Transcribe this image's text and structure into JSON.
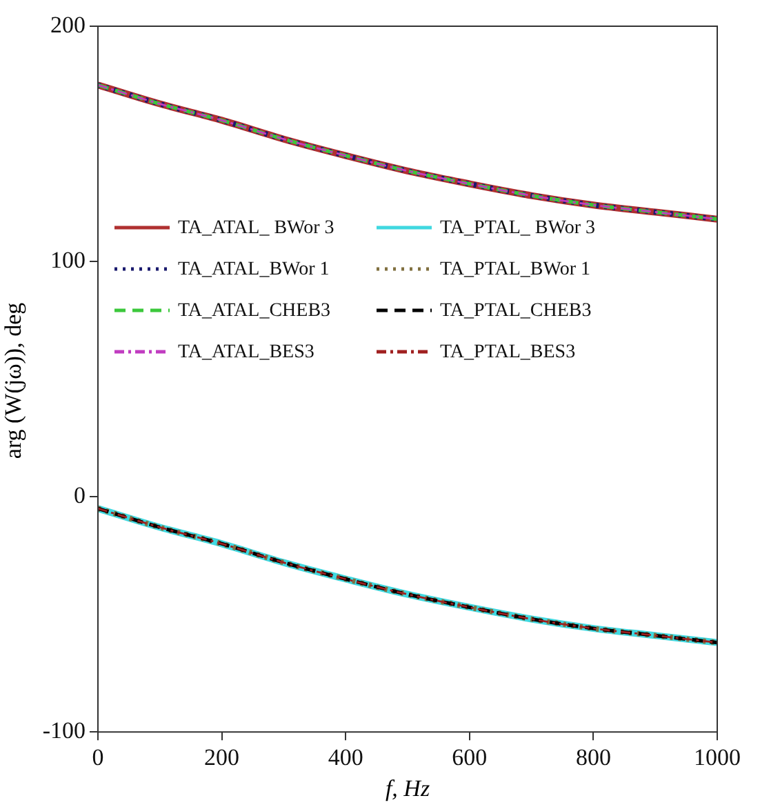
{
  "chart_data": {
    "type": "line",
    "xlabel": "f, Hz",
    "ylabel": "arg (W(jω)), deg",
    "x": [
      0,
      100,
      200,
      300,
      400,
      500,
      600,
      700,
      800,
      900,
      1000
    ],
    "xlim": [
      0,
      1000
    ],
    "xticks": [
      0,
      200,
      400,
      600,
      800,
      1000
    ],
    "ylim": [
      -100,
      200
    ],
    "yticks": [
      -100,
      0,
      100,
      200
    ],
    "grid": false,
    "legend": "left",
    "marker": "none",
    "series": [
      {
        "name": "TA_ATAL_ BWor 3",
        "color": "#b03030",
        "line_style": "solid",
        "values": [
          175,
          167,
          160,
          152,
          145,
          138.5,
          133,
          128,
          124,
          121,
          118
        ]
      },
      {
        "name": "TA_ATAL_BWor 1",
        "color": "#1a1a6e",
        "line_style": "dotted",
        "values": [
          175,
          167,
          160,
          152,
          145,
          138.5,
          133,
          128,
          124,
          121,
          118
        ]
      },
      {
        "name": "TA_ATAL_CHEB3",
        "color": "#3cc83c",
        "line_style": "dashed",
        "values": [
          175,
          167,
          160,
          152,
          145,
          138.5,
          133,
          128,
          124,
          121,
          118
        ]
      },
      {
        "name": "TA_ATAL_BES3",
        "color": "#c03cc0",
        "line_style": "dashdot",
        "values": [
          175,
          167,
          160,
          152,
          145,
          138.5,
          133,
          128,
          124,
          121,
          118
        ]
      },
      {
        "name": "TA_PTAL_ BWor 3",
        "color": "#40d8e0",
        "line_style": "solid",
        "values": [
          -5,
          -13,
          -20,
          -28,
          -35,
          -41.5,
          -47,
          -52,
          -56,
          -59,
          -62
        ]
      },
      {
        "name": "TA_PTAL_BWor 1",
        "color": "#807040",
        "line_style": "dotted",
        "values": [
          -5,
          -13,
          -20,
          -28,
          -35,
          -41.5,
          -47,
          -52,
          -56,
          -59,
          -62
        ]
      },
      {
        "name": "TA_PTAL_CHEB3",
        "color": "#000000",
        "line_style": "dashed",
        "values": [
          -5,
          -13,
          -20,
          -28,
          -35,
          -41.5,
          -47,
          -52,
          -56,
          -59,
          -62
        ]
      },
      {
        "name": "TA_PTAL_BES3",
        "color": "#a02020",
        "line_style": "dashdot",
        "values": [
          -5,
          -13,
          -20,
          -28,
          -35,
          -41.5,
          -47,
          -52,
          -56,
          -59,
          -62
        ]
      }
    ]
  }
}
